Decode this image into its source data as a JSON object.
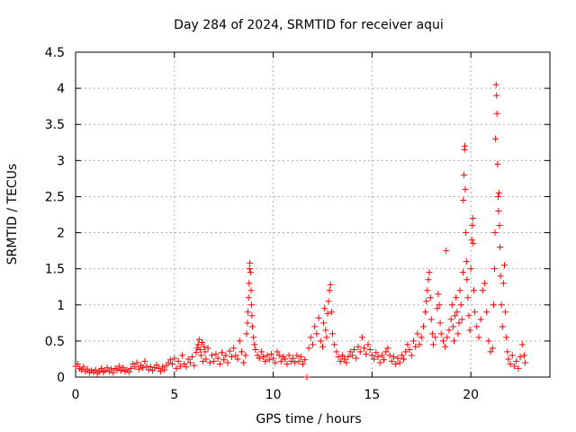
{
  "chart_data": {
    "type": "scatter",
    "title": "Day 284 of 2024, SRMTID for receiver aqui",
    "xlabel": "GPS time / hours",
    "ylabel": "SRMTID / TECUs",
    "xlim": [
      0,
      24
    ],
    "ylim": [
      0,
      4.5
    ],
    "grid": true,
    "marker": "+",
    "colors": {
      "points": "#ff0000",
      "grid": "#b0b0b0",
      "axes": "#000000"
    },
    "x_ticks": [
      {
        "value": 0,
        "label": "0"
      },
      {
        "value": 5,
        "label": "5"
      },
      {
        "value": 10,
        "label": "10"
      },
      {
        "value": 15,
        "label": "15"
      },
      {
        "value": 20,
        "label": "20"
      }
    ],
    "y_ticks": [
      {
        "value": 0,
        "label": "0"
      },
      {
        "value": 0.5,
        "label": "0.5"
      },
      {
        "value": 1,
        "label": "1"
      },
      {
        "value": 1.5,
        "label": "1.5"
      },
      {
        "value": 2,
        "label": "2"
      },
      {
        "value": 2.5,
        "label": "2.5"
      },
      {
        "value": 3,
        "label": "3"
      },
      {
        "value": 3.5,
        "label": "3.5"
      },
      {
        "value": 4,
        "label": "4"
      },
      {
        "value": 4.5,
        "label": "4.5"
      }
    ],
    "series": [
      {
        "name": "aqui",
        "points": [
          [
            0.0,
            0.15
          ],
          [
            0.1,
            0.18
          ],
          [
            0.2,
            0.12
          ],
          [
            0.3,
            0.1
          ],
          [
            0.4,
            0.14
          ],
          [
            0.5,
            0.08
          ],
          [
            0.6,
            0.11
          ],
          [
            0.7,
            0.06
          ],
          [
            0.8,
            0.09
          ],
          [
            0.9,
            0.07
          ],
          [
            1.0,
            0.1
          ],
          [
            1.1,
            0.05
          ],
          [
            1.2,
            0.08
          ],
          [
            1.3,
            0.12
          ],
          [
            1.4,
            0.07
          ],
          [
            1.5,
            0.09
          ],
          [
            1.6,
            0.13
          ],
          [
            1.7,
            0.08
          ],
          [
            1.8,
            0.11
          ],
          [
            1.9,
            0.06
          ],
          [
            2.0,
            0.12
          ],
          [
            2.1,
            0.1
          ],
          [
            2.2,
            0.15
          ],
          [
            2.3,
            0.09
          ],
          [
            2.4,
            0.13
          ],
          [
            2.5,
            0.08
          ],
          [
            2.6,
            0.1
          ],
          [
            2.7,
            0.07
          ],
          [
            2.8,
            0.12
          ],
          [
            2.9,
            0.18
          ],
          [
            3.0,
            0.14
          ],
          [
            3.1,
            0.2
          ],
          [
            3.2,
            0.11
          ],
          [
            3.3,
            0.16
          ],
          [
            3.4,
            0.13
          ],
          [
            3.5,
            0.22
          ],
          [
            3.6,
            0.15
          ],
          [
            3.7,
            0.1
          ],
          [
            3.8,
            0.14
          ],
          [
            3.9,
            0.09
          ],
          [
            4.0,
            0.13
          ],
          [
            4.1,
            0.17
          ],
          [
            4.2,
            0.12
          ],
          [
            4.3,
            0.08
          ],
          [
            4.4,
            0.14
          ],
          [
            4.5,
            0.1
          ],
          [
            4.6,
            0.16
          ],
          [
            4.7,
            0.2
          ],
          [
            4.8,
            0.24
          ],
          [
            4.9,
            0.18
          ],
          [
            5.0,
            0.26
          ],
          [
            5.1,
            0.12
          ],
          [
            5.2,
            0.22
          ],
          [
            5.3,
            0.15
          ],
          [
            5.4,
            0.3
          ],
          [
            5.5,
            0.18
          ],
          [
            5.6,
            0.14
          ],
          [
            5.7,
            0.25
          ],
          [
            5.8,
            0.2
          ],
          [
            5.9,
            0.28
          ],
          [
            6.0,
            0.16
          ],
          [
            6.1,
            0.34
          ],
          [
            6.15,
            0.4
          ],
          [
            6.2,
            0.45
          ],
          [
            6.25,
            0.52
          ],
          [
            6.3,
            0.38
          ],
          [
            6.35,
            0.3
          ],
          [
            6.4,
            0.48
          ],
          [
            6.45,
            0.22
          ],
          [
            6.5,
            0.42
          ],
          [
            6.55,
            0.35
          ],
          [
            6.6,
            0.25
          ],
          [
            6.7,
            0.4
          ],
          [
            6.8,
            0.2
          ],
          [
            6.9,
            0.3
          ],
          [
            7.0,
            0.22
          ],
          [
            7.1,
            0.32
          ],
          [
            7.2,
            0.26
          ],
          [
            7.3,
            0.18
          ],
          [
            7.4,
            0.34
          ],
          [
            7.5,
            0.24
          ],
          [
            7.6,
            0.3
          ],
          [
            7.7,
            0.2
          ],
          [
            7.8,
            0.36
          ],
          [
            7.9,
            0.28
          ],
          [
            8.0,
            0.4
          ],
          [
            8.1,
            0.3
          ],
          [
            8.2,
            0.25
          ],
          [
            8.3,
            0.5
          ],
          [
            8.4,
            0.35
          ],
          [
            8.5,
            0.2
          ],
          [
            8.6,
            0.3
          ],
          [
            8.65,
            0.6
          ],
          [
            8.7,
            0.75
          ],
          [
            8.72,
            0.9
          ],
          [
            8.75,
            1.1
          ],
          [
            8.78,
            1.3
          ],
          [
            8.8,
            1.5
          ],
          [
            8.82,
            1.58
          ],
          [
            8.85,
            1.45
          ],
          [
            8.88,
            1.2
          ],
          [
            8.9,
            1.0
          ],
          [
            8.92,
            0.85
          ],
          [
            8.95,
            0.7
          ],
          [
            9.0,
            0.55
          ],
          [
            9.05,
            0.45
          ],
          [
            9.1,
            0.38
          ],
          [
            9.2,
            0.3
          ],
          [
            9.3,
            0.26
          ],
          [
            9.4,
            0.35
          ],
          [
            9.5,
            0.28
          ],
          [
            9.6,
            0.22
          ],
          [
            9.7,
            0.3
          ],
          [
            9.8,
            0.24
          ],
          [
            9.9,
            0.32
          ],
          [
            10.0,
            0.26
          ],
          [
            10.1,
            0.2
          ],
          [
            10.2,
            0.35
          ],
          [
            10.3,
            0.3
          ],
          [
            10.4,
            0.22
          ],
          [
            10.5,
            0.28
          ],
          [
            10.6,
            0.25
          ],
          [
            10.7,
            0.18
          ],
          [
            10.8,
            0.3
          ],
          [
            10.9,
            0.22
          ],
          [
            11.0,
            0.26
          ],
          [
            11.1,
            0.2
          ],
          [
            11.2,
            0.3
          ],
          [
            11.3,
            0.22
          ],
          [
            11.4,
            0.28
          ],
          [
            11.5,
            0.18
          ],
          [
            11.6,
            0.24
          ],
          [
            11.7,
            0.0
          ],
          [
            11.8,
            0.4
          ],
          [
            11.9,
            0.55
          ],
          [
            12.0,
            0.45
          ],
          [
            12.1,
            0.7
          ],
          [
            12.2,
            0.6
          ],
          [
            12.3,
            0.82
          ],
          [
            12.4,
            0.5
          ],
          [
            12.5,
            0.42
          ],
          [
            12.55,
            0.75
          ],
          [
            12.6,
            0.95
          ],
          [
            12.65,
            0.65
          ],
          [
            12.7,
            0.55
          ],
          [
            12.75,
            0.88
          ],
          [
            12.8,
            1.05
          ],
          [
            12.85,
            1.2
          ],
          [
            12.9,
            1.28
          ],
          [
            12.95,
            0.9
          ],
          [
            13.0,
            0.6
          ],
          [
            13.1,
            0.45
          ],
          [
            13.2,
            0.35
          ],
          [
            13.3,
            0.28
          ],
          [
            13.4,
            0.22
          ],
          [
            13.5,
            0.3
          ],
          [
            13.6,
            0.25
          ],
          [
            13.7,
            0.2
          ],
          [
            13.8,
            0.28
          ],
          [
            13.9,
            0.35
          ],
          [
            14.0,
            0.3
          ],
          [
            14.1,
            0.38
          ],
          [
            14.2,
            0.26
          ],
          [
            14.3,
            0.42
          ],
          [
            14.4,
            0.35
          ],
          [
            14.5,
            0.55
          ],
          [
            14.6,
            0.4
          ],
          [
            14.7,
            0.32
          ],
          [
            14.8,
            0.45
          ],
          [
            14.9,
            0.38
          ],
          [
            15.0,
            0.3
          ],
          [
            15.1,
            0.25
          ],
          [
            15.2,
            0.34
          ],
          [
            15.3,
            0.28
          ],
          [
            15.4,
            0.2
          ],
          [
            15.5,
            0.3
          ],
          [
            15.6,
            0.24
          ],
          [
            15.7,
            0.35
          ],
          [
            15.8,
            0.4
          ],
          [
            15.9,
            0.3
          ],
          [
            16.0,
            0.22
          ],
          [
            16.1,
            0.28
          ],
          [
            16.2,
            0.18
          ],
          [
            16.3,
            0.26
          ],
          [
            16.4,
            0.2
          ],
          [
            16.5,
            0.3
          ],
          [
            16.6,
            0.25
          ],
          [
            16.7,
            0.35
          ],
          [
            16.8,
            0.45
          ],
          [
            16.9,
            0.38
          ],
          [
            17.0,
            0.3
          ],
          [
            17.1,
            0.5
          ],
          [
            17.2,
            0.42
          ],
          [
            17.3,
            0.6
          ],
          [
            17.4,
            0.45
          ],
          [
            17.5,
            0.55
          ],
          [
            17.6,
            0.7
          ],
          [
            17.7,
            0.9
          ],
          [
            17.75,
            1.05
          ],
          [
            17.8,
            1.2
          ],
          [
            17.85,
            1.35
          ],
          [
            17.9,
            1.45
          ],
          [
            17.95,
            1.1
          ],
          [
            18.0,
            0.8
          ],
          [
            18.05,
            0.6
          ],
          [
            18.1,
            0.45
          ],
          [
            18.2,
            0.55
          ],
          [
            18.3,
            0.95
          ],
          [
            18.35,
            1.15
          ],
          [
            18.4,
            1.0
          ],
          [
            18.45,
            0.75
          ],
          [
            18.5,
            0.6
          ],
          [
            18.6,
            0.5
          ],
          [
            18.7,
            0.42
          ],
          [
            18.75,
            1.75
          ],
          [
            18.8,
            0.55
          ],
          [
            18.9,
            0.65
          ],
          [
            19.0,
            0.8
          ],
          [
            19.05,
            1.0
          ],
          [
            19.1,
            0.7
          ],
          [
            19.15,
            0.5
          ],
          [
            19.2,
            0.85
          ],
          [
            19.25,
            1.1
          ],
          [
            19.3,
            0.9
          ],
          [
            19.35,
            0.6
          ],
          [
            19.4,
            0.75
          ],
          [
            19.45,
            1.2
          ],
          [
            19.5,
            1.0
          ],
          [
            19.55,
            0.8
          ],
          [
            19.6,
            1.45
          ],
          [
            19.62,
            2.45
          ],
          [
            19.65,
            2.8
          ],
          [
            19.68,
            3.15
          ],
          [
            19.7,
            3.2
          ],
          [
            19.72,
            2.6
          ],
          [
            19.75,
            2.0
          ],
          [
            19.78,
            1.6
          ],
          [
            19.8,
            1.35
          ],
          [
            19.85,
            1.1
          ],
          [
            19.9,
            0.85
          ],
          [
            19.95,
            0.65
          ],
          [
            20.0,
            1.5
          ],
          [
            20.05,
            1.9
          ],
          [
            20.08,
            2.1
          ],
          [
            20.1,
            2.2
          ],
          [
            20.12,
            1.85
          ],
          [
            20.15,
            1.2
          ],
          [
            20.2,
            0.9
          ],
          [
            20.3,
            0.7
          ],
          [
            20.4,
            0.55
          ],
          [
            20.5,
            0.8
          ],
          [
            20.6,
            1.2
          ],
          [
            20.7,
            1.3
          ],
          [
            20.8,
            0.9
          ],
          [
            20.9,
            0.5
          ],
          [
            21.0,
            0.35
          ],
          [
            21.1,
            0.4
          ],
          [
            21.15,
            1.0
          ],
          [
            21.2,
            1.5
          ],
          [
            21.22,
            2.0
          ],
          [
            21.25,
            3.3
          ],
          [
            21.28,
            4.05
          ],
          [
            21.3,
            3.9
          ],
          [
            21.32,
            3.65
          ],
          [
            21.35,
            2.95
          ],
          [
            21.38,
            2.5
          ],
          [
            21.4,
            2.3
          ],
          [
            21.42,
            2.55
          ],
          [
            21.45,
            2.1
          ],
          [
            21.48,
            1.8
          ],
          [
            21.5,
            1.4
          ],
          [
            21.55,
            1.0
          ],
          [
            21.6,
            0.7
          ],
          [
            21.65,
            1.3
          ],
          [
            21.7,
            1.55
          ],
          [
            21.75,
            0.9
          ],
          [
            21.8,
            0.55
          ],
          [
            21.85,
            0.35
          ],
          [
            21.9,
            0.25
          ],
          [
            22.0,
            0.18
          ],
          [
            22.1,
            0.3
          ],
          [
            22.2,
            0.15
          ],
          [
            22.3,
            0.22
          ],
          [
            22.4,
            0.12
          ],
          [
            22.5,
            0.28
          ],
          [
            22.6,
            0.45
          ],
          [
            22.7,
            0.3
          ],
          [
            22.75,
            0.2
          ]
        ]
      }
    ]
  }
}
